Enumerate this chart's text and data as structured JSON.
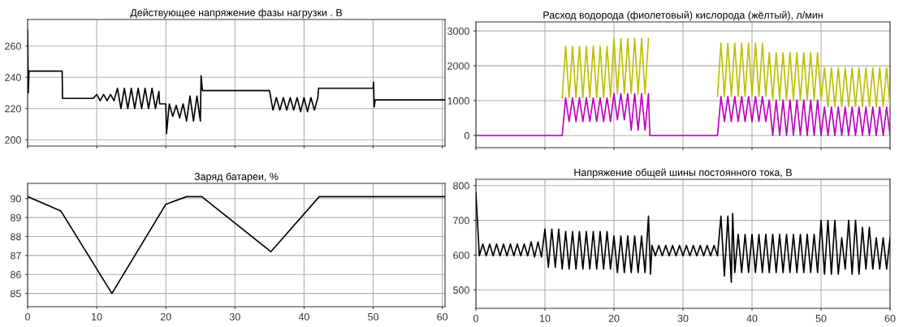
{
  "chart_data": [
    {
      "type": "line",
      "title": "Действующее напряжение фазы нагрузки . В",
      "xlim": [
        0,
        60.4
      ],
      "xticks": [
        0,
        10,
        20,
        30,
        40,
        50,
        60
      ],
      "ylim": [
        196,
        277
      ],
      "yticks": [
        200,
        220,
        240,
        260
      ],
      "grid": true,
      "tick_labels": "y",
      "series": [
        {
          "color": "#000000",
          "x": [
            0,
            0.1,
            0.2,
            5,
            5.05,
            9.5,
            10,
            10.5,
            11,
            11.5,
            12,
            12.5,
            13,
            13.5,
            14,
            14.5,
            15,
            15.5,
            16,
            16.5,
            17,
            17.5,
            18,
            18.5,
            19,
            19.1,
            20,
            20.1,
            20.5,
            21,
            21.5,
            22,
            22.5,
            23,
            23.5,
            24,
            24.5,
            25,
            25.1,
            25.3,
            35,
            35.5,
            36,
            36.5,
            37,
            37.5,
            38,
            38.5,
            39,
            39.5,
            40,
            40.5,
            41,
            41.5,
            42,
            42.1,
            50,
            50.05,
            50.15,
            50.3,
            60.4
          ],
          "values": [
            270,
            230,
            244,
            244,
            226.5,
            226.5,
            229,
            225,
            229,
            225,
            229,
            225,
            233,
            220,
            233,
            220,
            233,
            220,
            233,
            220,
            233,
            220,
            233,
            220,
            231,
            223,
            223,
            204,
            223,
            215,
            222,
            214,
            223,
            212,
            228,
            212,
            228,
            212,
            241,
            231.5,
            231.5,
            219,
            227,
            219,
            227,
            219,
            227,
            219,
            227,
            218,
            227,
            218,
            227,
            219,
            227,
            233,
            233,
            237,
            221,
            225.5,
            225.5
          ]
        }
      ]
    },
    {
      "type": "line",
      "title": "Расход водорода (фиолетовый) кислорода (жёлтый), л/мин",
      "xlim": [
        0,
        60
      ],
      "xticks": [
        0,
        10,
        20,
        30,
        40,
        50,
        60
      ],
      "ylim": [
        -350,
        3260
      ],
      "yticks": [
        0,
        1000,
        2000,
        3000
      ],
      "grid": true,
      "tick_labels": "y",
      "series": [
        {
          "color": "#bfbf00",
          "x": [
            12.5,
            13,
            13.5,
            14,
            14.5,
            15,
            15.5,
            16,
            16.5,
            17,
            17.5,
            18,
            18.5,
            19,
            19.5,
            20,
            20.5,
            21,
            21.5,
            22,
            22.5,
            23,
            23.5,
            24,
            24.5,
            25,
            25.5,
            35,
            35.5,
            36,
            36.5,
            37,
            37.5,
            38,
            38.5,
            39,
            39.5,
            40,
            40.5,
            41,
            41.5,
            42,
            42.5,
            43,
            43.5,
            44,
            44.5,
            45,
            45.5,
            46,
            46.5,
            47,
            47.5,
            48,
            48.5,
            49,
            49.5,
            50,
            50.5,
            51,
            51.5,
            52,
            52.5,
            53,
            53.5,
            54,
            54.5,
            55,
            55.5,
            56,
            56.5,
            57,
            57.5,
            58,
            58.5,
            59,
            59.5,
            60
          ],
          "values": [
            1080,
            2560,
            1080,
            2560,
            1080,
            2560,
            1080,
            2560,
            1080,
            2560,
            1080,
            2560,
            1080,
            2560,
            1080,
            2780,
            1200,
            2780,
            1200,
            2780,
            1200,
            2780,
            1200,
            2780,
            1200,
            2780,
            null,
            1120,
            2650,
            1120,
            2650,
            1120,
            2650,
            1120,
            2650,
            1120,
            2650,
            1120,
            2650,
            1120,
            2650,
            1120,
            2380,
            1020,
            2380,
            1020,
            2380,
            1020,
            2380,
            1020,
            2380,
            1020,
            2380,
            1020,
            2380,
            1020,
            2380,
            1020,
            1940,
            820,
            1940,
            820,
            1940,
            820,
            1940,
            820,
            1940,
            820,
            1940,
            820,
            1940,
            820,
            1940,
            820,
            1940,
            820,
            1940,
            820
          ]
        },
        {
          "color": "#bf00bf",
          "x": [
            0,
            12.5,
            13,
            13.5,
            14,
            14.5,
            15,
            15.5,
            16,
            16.5,
            17,
            17.5,
            18,
            18.5,
            19,
            19.5,
            20,
            20.5,
            21,
            21.5,
            22,
            22.5,
            23,
            23.5,
            24,
            24.5,
            25,
            25.2,
            35,
            35.5,
            36,
            36.5,
            37,
            37.5,
            38,
            38.5,
            39,
            39.5,
            40,
            40.5,
            41,
            41.5,
            42,
            42.5,
            43,
            43.5,
            44,
            44.5,
            45,
            45.5,
            46,
            46.5,
            47,
            47.5,
            48,
            48.5,
            49,
            49.5,
            50,
            50.5,
            51,
            51.5,
            52,
            52.5,
            53,
            53.5,
            54,
            54.5,
            55,
            55.5,
            56,
            56.5,
            57,
            57.5,
            58,
            58.5,
            59,
            59.5,
            60
          ],
          "values": [
            0,
            0,
            1080,
            400,
            1080,
            400,
            1080,
            400,
            1080,
            400,
            1080,
            400,
            1080,
            400,
            1080,
            400,
            1200,
            450,
            1200,
            450,
            1200,
            150,
            1200,
            150,
            1200,
            150,
            1200,
            0,
            0,
            1120,
            400,
            1120,
            400,
            1120,
            400,
            1120,
            400,
            1120,
            400,
            1120,
            400,
            1120,
            400,
            1020,
            0,
            1020,
            0,
            1020,
            0,
            1020,
            0,
            1020,
            0,
            1020,
            0,
            1020,
            0,
            1020,
            0,
            820,
            0,
            820,
            0,
            820,
            0,
            820,
            0,
            820,
            0,
            820,
            0,
            820,
            0,
            820,
            0,
            820,
            0,
            820,
            0
          ]
        }
      ]
    },
    {
      "type": "line",
      "title": "Заряд батареи, %",
      "xlim": [
        0,
        60.4
      ],
      "xticks": [
        0,
        10,
        20,
        30,
        40,
        50,
        60
      ],
      "ylim": [
        84.3,
        90.8
      ],
      "yticks": [
        85,
        86,
        87,
        88,
        89,
        90
      ],
      "grid": true,
      "series": [
        {
          "color": "#000000",
          "x": [
            0,
            4.8,
            12.2,
            20,
            23,
            25.2,
            35.2,
            42.2,
            60.4
          ],
          "values": [
            90.1,
            89.35,
            85.0,
            89.7,
            90.1,
            90.1,
            87.2,
            90.1,
            90.1
          ]
        }
      ]
    },
    {
      "type": "line",
      "title": "Напряжение общей шины постоянного тока, В",
      "xlim": [
        0,
        60
      ],
      "xticks": [
        0,
        10,
        20,
        30,
        40,
        50,
        60
      ],
      "ylim": [
        447,
        818
      ],
      "yticks": [
        500,
        600,
        700,
        800
      ],
      "grid": true,
      "series": [
        {
          "color": "#000000",
          "x": [
            0,
            0.5,
            1,
            1.5,
            2,
            2.5,
            3,
            3.5,
            4,
            4.5,
            5,
            5.5,
            6,
            6.5,
            7,
            7.5,
            8,
            8.5,
            9,
            9.5,
            10,
            10.5,
            11,
            11.5,
            12,
            12.5,
            13,
            13.5,
            14,
            14.5,
            15,
            15.5,
            16,
            16.5,
            17,
            17.5,
            18,
            18.5,
            19,
            19.5,
            20,
            20.5,
            21,
            21.5,
            22,
            22.5,
            23,
            23.5,
            24,
            24.5,
            25,
            25.3,
            25.5,
            26,
            26.5,
            27,
            27.5,
            28,
            28.5,
            29,
            29.5,
            30,
            30.5,
            31,
            31.5,
            32,
            32.5,
            33,
            33.5,
            34,
            34.5,
            35,
            35.5,
            36,
            36.5,
            37,
            37.2,
            37.5,
            38,
            38.5,
            39,
            39.5,
            40,
            40.5,
            41,
            41.5,
            42,
            42.5,
            43,
            43.5,
            44,
            44.5,
            45,
            45.5,
            46,
            46.5,
            47,
            47.5,
            48,
            48.5,
            49,
            49.5,
            50,
            50.5,
            51,
            51.5,
            52,
            52.5,
            53,
            53.5,
            54,
            54.5,
            55,
            55.5,
            56,
            56.5,
            57,
            57.5,
            58,
            58.5,
            59,
            59.5,
            60
          ],
          "values": [
            780,
            598,
            632,
            598,
            632,
            598,
            632,
            598,
            632,
            598,
            632,
            598,
            632,
            598,
            632,
            598,
            638,
            595,
            638,
            595,
            675,
            565,
            675,
            565,
            675,
            560,
            668,
            560,
            668,
            560,
            668,
            560,
            668,
            560,
            668,
            560,
            668,
            560,
            668,
            560,
            655,
            550,
            655,
            550,
            655,
            550,
            655,
            550,
            655,
            550,
            712,
            545,
            628,
            598,
            628,
            598,
            628,
            598,
            628,
            598,
            628,
            598,
            628,
            598,
            628,
            598,
            628,
            598,
            628,
            598,
            628,
            598,
            712,
            540,
            712,
            522,
            720,
            550,
            660,
            550,
            660,
            550,
            660,
            550,
            660,
            550,
            660,
            550,
            660,
            550,
            660,
            550,
            660,
            550,
            660,
            550,
            660,
            550,
            660,
            550,
            660,
            550,
            700,
            545,
            700,
            545,
            700,
            545,
            650,
            560,
            700,
            545,
            700,
            545,
            680,
            560,
            680,
            560,
            650,
            560,
            650,
            560,
            650
          ]
        }
      ]
    }
  ]
}
